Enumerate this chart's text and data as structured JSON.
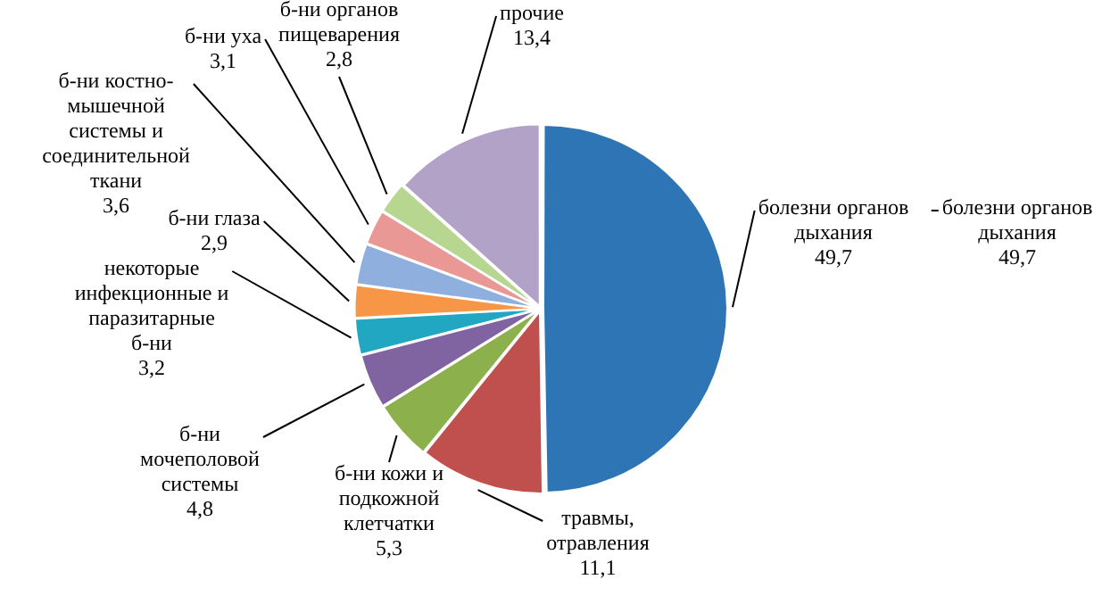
{
  "chart_data": {
    "type": "pie",
    "categories": [
      "болезни органов дыхания",
      "травмы, отравления",
      "б-ни кожи и подкожной клетчатки",
      "б-ни мочеполовой системы",
      "некоторые инфекционные и паразитарные б-ни",
      "б-ни глаза",
      "б-ни костно-мышечной системы и соединительной ткани",
      "б-ни уха",
      "б-ни органов пищеварения",
      "прочие"
    ],
    "values": [
      49.7,
      11.1,
      5.3,
      4.8,
      3.2,
      2.9,
      3.6,
      3.1,
      2.8,
      13.4
    ],
    "value_labels": [
      "49,7",
      "11,1",
      "5,3",
      "4,8",
      "3,2",
      "2,9",
      "3,6",
      "3,1",
      "2,8",
      "13,4"
    ],
    "colors": [
      "#2e75b6",
      "#c0504d",
      "#8cb04c",
      "#8064a2",
      "#22a7c2",
      "#f79646",
      "#8fb0de",
      "#e99896",
      "#b7d690",
      "#b3a2c7"
    ],
    "legend": false,
    "annotations": [
      "болезни органов дыхания 49,7"
    ]
  }
}
